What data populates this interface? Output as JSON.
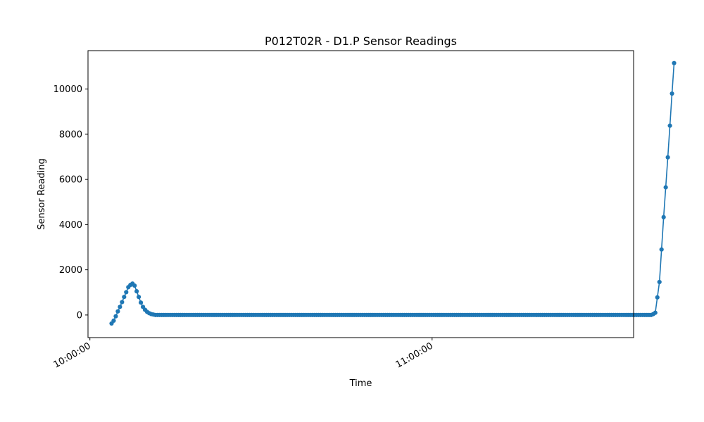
{
  "chart_data": {
    "type": "line",
    "title": "P012T02R - D1.P Sensor Readings",
    "xlabel": "Time",
    "ylabel": "Sensor Reading",
    "x_tick_labels": [
      "10:00:00",
      "11:00:00"
    ],
    "x_ticks_seconds_from_10": [
      0,
      3600
    ],
    "xlim_seconds_from_10": [
      -20,
      5720
    ],
    "y_ticks": [
      0,
      2000,
      4000,
      6000,
      8000,
      10000
    ],
    "ylim": [
      -1000,
      11700
    ],
    "grid": false,
    "legend": "none",
    "line_color": "#1f77b4",
    "series": [
      {
        "start_seconds_from_10": 228,
        "interval_seconds": 22,
        "values": [
          -375,
          -250,
          -55,
          160,
          360,
          570,
          800,
          1010,
          1230,
          1330,
          1390,
          1300,
          1050,
          800,
          550,
          360,
          230,
          140,
          80,
          40,
          20,
          0,
          0,
          0,
          0,
          0,
          0,
          0,
          0,
          0,
          0,
          0,
          0,
          0,
          0,
          0,
          0,
          0,
          0,
          0,
          0,
          0,
          0,
          0,
          0,
          0,
          0,
          0,
          0,
          0,
          0,
          0,
          0,
          0,
          0,
          0,
          0,
          0,
          0,
          0,
          0,
          0,
          0,
          0,
          0,
          0,
          0,
          0,
          0,
          0,
          0,
          0,
          0,
          0,
          0,
          0,
          0,
          0,
          0,
          0,
          0,
          0,
          0,
          0,
          0,
          0,
          0,
          0,
          0,
          0,
          0,
          0,
          0,
          0,
          0,
          0,
          0,
          0,
          0,
          0,
          0,
          0,
          0,
          0,
          0,
          0,
          0,
          0,
          0,
          0,
          0,
          0,
          0,
          0,
          0,
          0,
          0,
          0,
          0,
          0,
          0,
          0,
          0,
          0,
          0,
          0,
          0,
          0,
          0,
          0,
          0,
          0,
          0,
          0,
          0,
          0,
          0,
          0,
          0,
          0,
          0,
          0,
          0,
          0,
          0,
          0,
          0,
          0,
          0,
          0,
          0,
          0,
          0,
          0,
          0,
          0,
          0,
          0,
          0,
          0,
          0,
          0,
          0,
          0,
          0,
          0,
          0,
          0,
          0,
          0,
          0,
          0,
          0,
          0,
          0,
          0,
          0,
          0,
          0,
          0,
          0,
          0,
          0,
          0,
          0,
          0,
          0,
          0,
          0,
          0,
          0,
          0,
          0,
          0,
          0,
          0,
          0,
          0,
          0,
          0,
          0,
          0,
          0,
          0,
          0,
          0,
          0,
          0,
          0,
          0,
          0,
          0,
          0,
          0,
          0,
          0,
          0,
          0,
          0,
          0,
          0,
          0,
          0,
          0,
          0,
          0,
          0,
          0,
          0,
          0,
          0,
          0,
          0,
          0,
          0,
          0,
          0,
          0,
          0,
          0,
          0,
          0,
          0,
          0,
          0,
          0,
          0,
          0,
          0,
          0,
          0,
          0,
          0,
          0,
          0,
          0,
          0,
          0,
          0,
          40,
          100,
          780,
          1460,
          2900,
          4330,
          5650,
          6980,
          8380,
          9800,
          11150
        ]
      }
    ]
  }
}
